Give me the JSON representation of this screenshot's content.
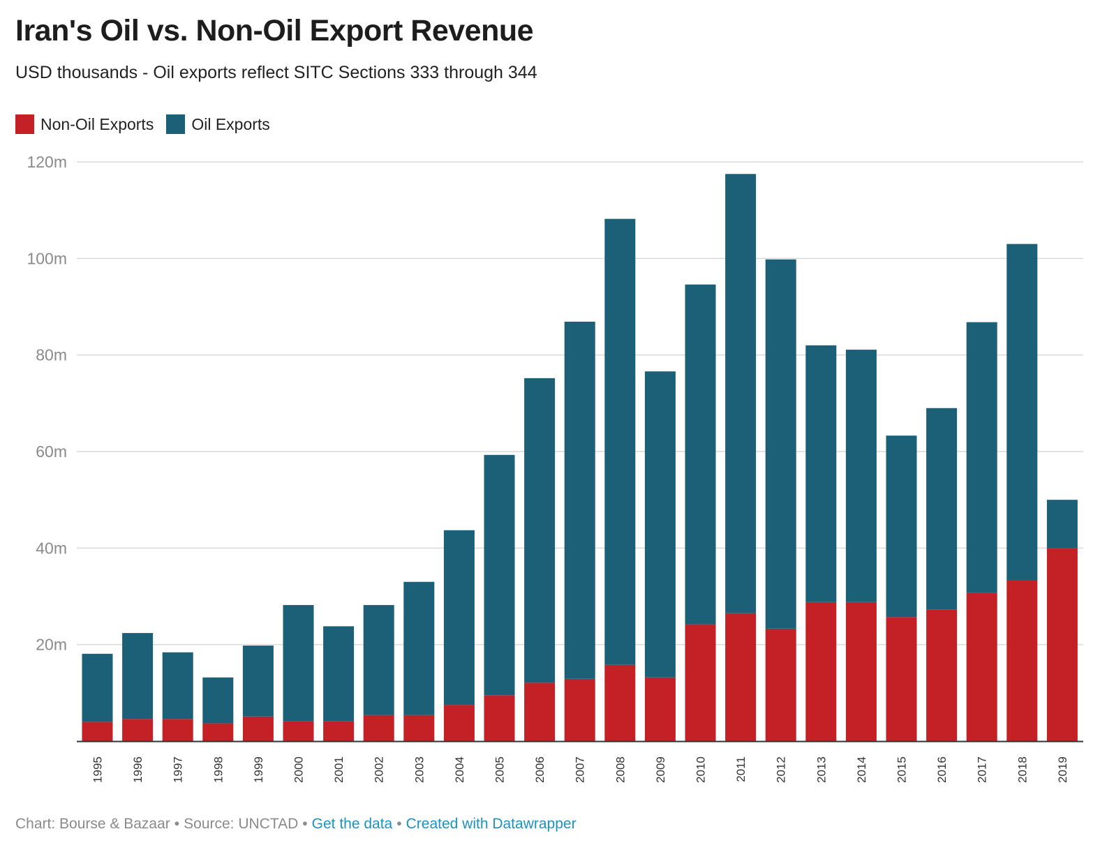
{
  "title": "Iran's Oil vs. Non-Oil Export Revenue",
  "subtitle": "USD thousands - Oil exports reflect SITC Sections 333 through 344",
  "colors": {
    "non_oil": "#c42127",
    "oil": "#1c6078",
    "grid": "#d9d9d9",
    "axis": "#333333"
  },
  "legend": [
    {
      "label": "Non-Oil Exports",
      "color": "#c42127"
    },
    {
      "label": "Oil Exports",
      "color": "#1c6078"
    }
  ],
  "y_ticks": [
    "20m",
    "40m",
    "60m",
    "80m",
    "100m",
    "120m"
  ],
  "footer": {
    "chart_by": "Chart: Bourse & Bazaar",
    "source": "Source: UNCTAD",
    "get_data": "Get the data",
    "created_with": "Created with Datawrapper",
    "separator": "•"
  },
  "chart_data": {
    "type": "bar",
    "stacked": true,
    "categories": [
      "1995",
      "1996",
      "1997",
      "1998",
      "1999",
      "2000",
      "2001",
      "2002",
      "2003",
      "2004",
      "2005",
      "2006",
      "2007",
      "2008",
      "2009",
      "2010",
      "2011",
      "2012",
      "2013",
      "2014",
      "2015",
      "2016",
      "2017",
      "2018",
      "2019"
    ],
    "series": [
      {
        "name": "Non-Oil Exports",
        "values": [
          4.0,
          4.6,
          4.6,
          3.7,
          5.1,
          4.1,
          4.1,
          5.4,
          5.4,
          7.5,
          9.5,
          12.1,
          12.9,
          15.8,
          13.2,
          24.2,
          26.5,
          23.3,
          28.8,
          28.8,
          25.7,
          27.3,
          30.7,
          33.4,
          40.0
        ]
      },
      {
        "name": "Oil Exports",
        "values": [
          14.1,
          17.8,
          13.8,
          9.5,
          14.7,
          24.1,
          19.7,
          22.8,
          27.6,
          36.2,
          49.8,
          63.1,
          74.0,
          92.4,
          63.4,
          70.4,
          91.0,
          76.5,
          53.2,
          52.3,
          37.6,
          41.7,
          56.1,
          69.6,
          10.0
        ]
      }
    ],
    "ylim": [
      0,
      120
    ],
    "y_unit": "m",
    "grid": true,
    "legend_position": "top-left"
  }
}
